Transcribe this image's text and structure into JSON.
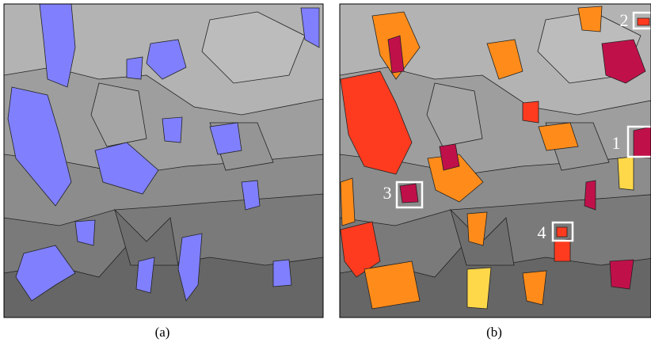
{
  "panels": [
    {
      "caption": "(a)"
    },
    {
      "caption": "(b)",
      "callouts": [
        "1",
        "2",
        "3",
        "4"
      ]
    }
  ]
}
